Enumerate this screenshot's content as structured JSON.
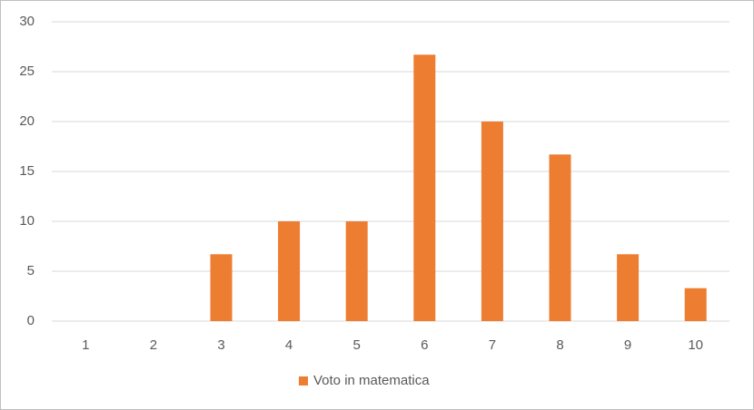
{
  "chart_data": {
    "type": "bar",
    "categories": [
      "1",
      "2",
      "3",
      "4",
      "5",
      "6",
      "7",
      "8",
      "9",
      "10"
    ],
    "series": [
      {
        "name": "Voto in matematica",
        "color": "#ed7d31",
        "values": [
          0,
          0,
          6.7,
          10,
          10,
          26.7,
          20,
          16.7,
          6.7,
          3.3
        ]
      }
    ],
    "ylim": [
      0,
      30
    ],
    "yticks": [
      0,
      5,
      10,
      15,
      20,
      25,
      30
    ],
    "grid": true,
    "legend": "bottom"
  }
}
